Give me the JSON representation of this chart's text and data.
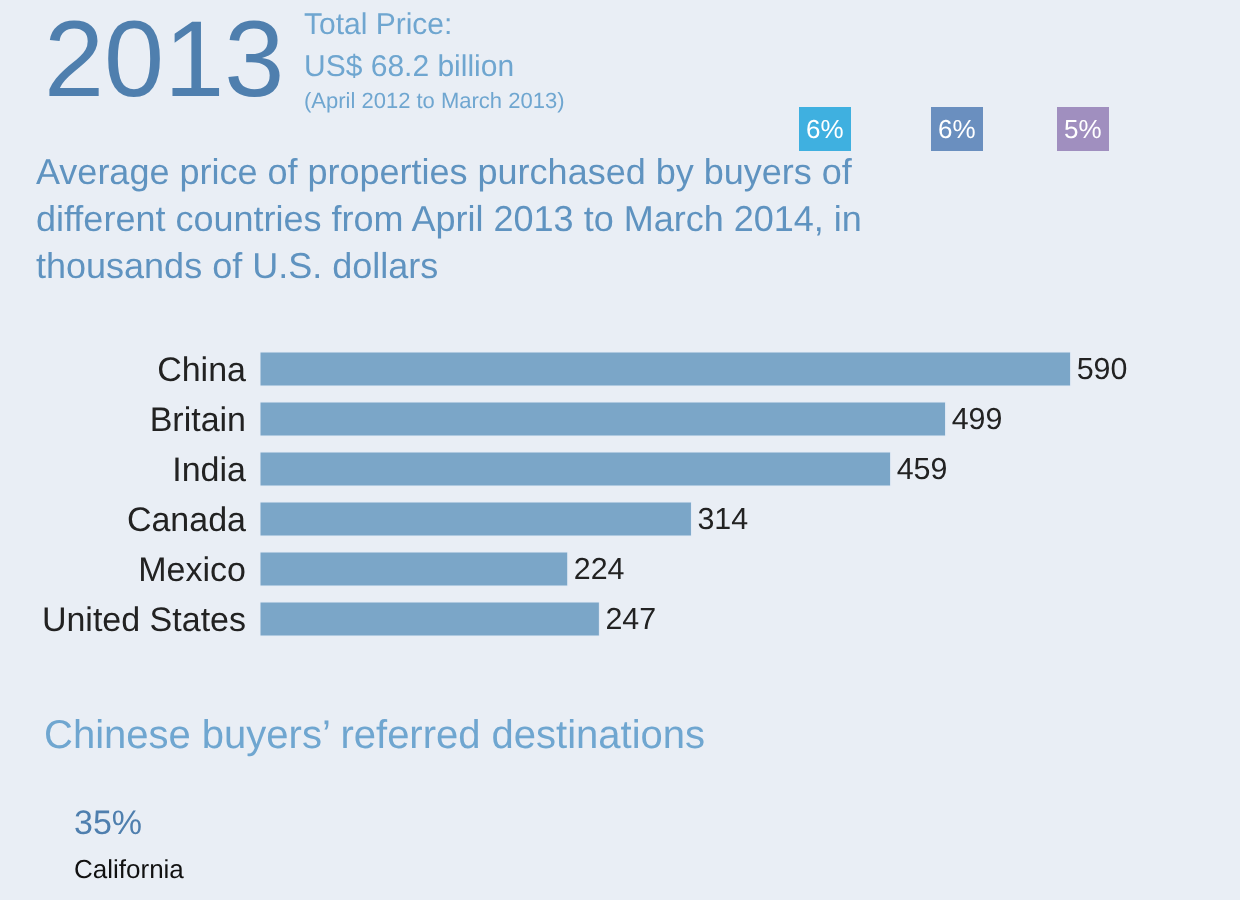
{
  "chart_data": {
    "type": "bar",
    "orientation": "horizontal",
    "title": "Average price of properties purchased by buyers of different countries from April 2013 to March 2014, in thousands of U.S. dollars",
    "categories": [
      "China",
      "Britain",
      "India",
      "Canada",
      "Mexico",
      "United States"
    ],
    "values": [
      590,
      499,
      459,
      314,
      224,
      247
    ],
    "color": "#7ba6c8",
    "data_labels": true,
    "annotations": [
      "2013",
      "Total Price:",
      "US$ 68.2 billion",
      "(April 2012 to March 2013)",
      "6%",
      "6%",
      "5%",
      "Chinese buyers’ referred destinations",
      "35%",
      "California"
    ]
  }
}
